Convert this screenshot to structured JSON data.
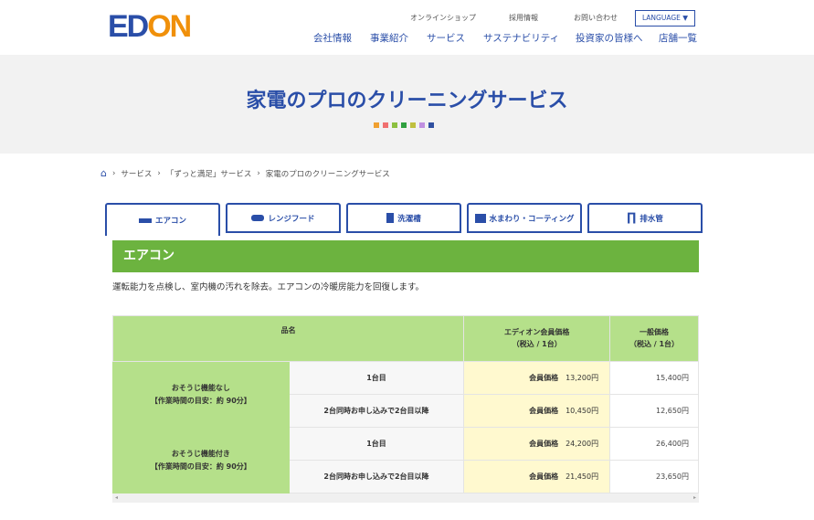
{
  "header": {
    "logo": "EDION",
    "util_links": [
      "オンラインショップ",
      "採用情報",
      "お問い合わせ"
    ],
    "language": "LANGUAGE ▼",
    "nav": [
      "会社情報",
      "事業紹介",
      "サービス",
      "サステナビリティ",
      "投資家の皆様へ",
      "店舗一覧"
    ]
  },
  "page_title": "家電のプロのクリーニングサービス",
  "dot_colors": [
    "#f0a030",
    "#f07070",
    "#8cc040",
    "#30a040",
    "#c0c040",
    "#c090e0",
    "#3050a0"
  ],
  "breadcrumb": [
    "サービス",
    "「ずっと満足」サービス",
    "家電のプロのクリーニングサービス"
  ],
  "tabs": [
    {
      "label": "エアコン",
      "icon": "air-conditioner-icon"
    },
    {
      "label": "レンジフード",
      "icon": "range-hood-icon"
    },
    {
      "label": "洗濯槽",
      "icon": "washing-machine-icon"
    },
    {
      "label": "水まわり・コーティング",
      "icon": "bathroom-icon"
    },
    {
      "label": "排水管",
      "icon": "drain-pipe-icon"
    }
  ],
  "section": {
    "title": "エアコン",
    "description": "運転能力を点検し、室内機の汚れを除去。エアコンの冷暖房能力を回復します。"
  },
  "table": {
    "headers": {
      "name": "品名",
      "member_l1": "エディオン会員価格",
      "member_l2": "（税込 / 1台）",
      "general_l1": "一般価格",
      "general_l2": "（税込 / 1台）"
    },
    "member_label": "会員価格",
    "groups": [
      {
        "name": "おそうじ機能なし",
        "time": "【作業時間の目安：約 90分】",
        "rows": [
          {
            "sub": "1台目",
            "member": "13,200円",
            "general": "15,400円"
          },
          {
            "sub": "2台同時お申し込みで2台目以降",
            "member": "10,450円",
            "general": "12,650円"
          }
        ]
      },
      {
        "name": "おそうじ機能付き",
        "time": "【作業時間の目安：約 90分】",
        "rows": [
          {
            "sub": "1台目",
            "member": "24,200円",
            "general": "26,400円"
          },
          {
            "sub": "2台同時お申し込みで2台目以降",
            "member": "21,450円",
            "general": "23,650円"
          }
        ]
      }
    ]
  }
}
